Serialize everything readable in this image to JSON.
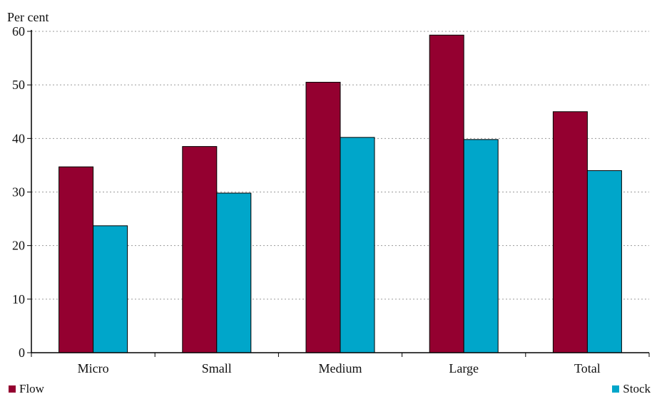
{
  "chart_data": {
    "type": "bar",
    "title": "",
    "xlabel": "",
    "ylabel": "Per cent",
    "ylim": [
      0,
      60
    ],
    "yticks": [
      0,
      10,
      20,
      30,
      40,
      50,
      60
    ],
    "grid": true,
    "legend_position": "bottom",
    "categories": [
      "Micro",
      "Small",
      "Medium",
      "Large",
      "Total"
    ],
    "series": [
      {
        "name": "Flow",
        "color": "#940030",
        "values": [
          34.7,
          38.5,
          50.5,
          59.3,
          45.0
        ]
      },
      {
        "name": "Stock",
        "color": "#00A6CA",
        "values": [
          23.7,
          29.8,
          40.2,
          39.8,
          34.0
        ]
      }
    ]
  }
}
